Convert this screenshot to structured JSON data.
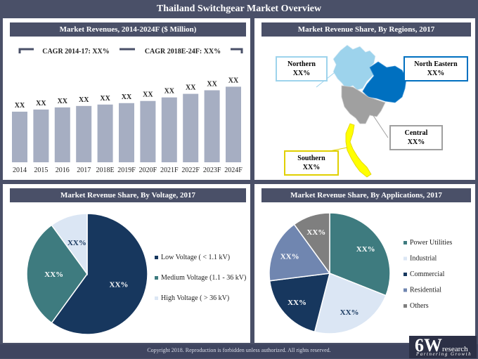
{
  "page_title": "Thailand Switchgear Market Overview",
  "copyright": "Copyright 2018. Reproduction is forbidden unless authorized. All rights reserved.",
  "logo": {
    "main": "6W",
    "sup": "research",
    "tagline": "Partnering Growth"
  },
  "colors": {
    "header": "#4a5068",
    "bar": "#a6aec2",
    "navy": "#17375e",
    "teal": "#3e7b7f",
    "lightblue": "#dbe6f4",
    "slate": "#7086b0",
    "gray": "#7f7f7f"
  },
  "panels": {
    "revenues": {
      "header": "Market Revenues, 2014-2024F ($ Million)",
      "cagr1": "CAGR 2014-17: XX%",
      "cagr2": "CAGR 2018E-24F: XX%"
    },
    "regions": {
      "header": "Market Revenue Share, By Regions, 2017",
      "items": [
        {
          "name": "Northern",
          "value": "XX%",
          "color": "#9dd3ec"
        },
        {
          "name": "North Eastern",
          "value": "XX%",
          "color": "#0070c0"
        },
        {
          "name": "Central",
          "value": "XX%",
          "color": "#a0a0a0"
        },
        {
          "name": "Southern",
          "value": "XX%",
          "color": "#ffff00"
        }
      ]
    },
    "voltage": {
      "header": "Market Revenue Share, By Voltage, 2017"
    },
    "applications": {
      "header": "Market Revenue Share, By Applications, 2017"
    }
  },
  "chart_data": [
    {
      "type": "bar",
      "title": "Market Revenues, 2014-2024F ($ Million)",
      "categories": [
        "2014",
        "2015",
        "2016",
        "2017",
        "2018E",
        "2019F",
        "2020F",
        "2021F",
        "2022F",
        "2023F",
        "2024F"
      ],
      "values": [
        71,
        74,
        77,
        79,
        81,
        83,
        86,
        91,
        96,
        101,
        106
      ],
      "labels": [
        "XX",
        "XX",
        "XX",
        "XX",
        "XX",
        "XX",
        "XX",
        "XX",
        "XX",
        "XX",
        "XX"
      ],
      "ylim": [
        0,
        135
      ],
      "xlabel": "",
      "ylabel": ""
    },
    {
      "type": "pie",
      "title": "Market Revenue Share, By Voltage, 2017",
      "series": [
        {
          "name": "Low Voltage ( < 1.1 kV)",
          "value": 60,
          "label": "XX%",
          "color": "#17375e"
        },
        {
          "name": "Medium Voltage (1.1 - 36 kV)",
          "value": 30,
          "label": "XX%",
          "color": "#3e7b7f"
        },
        {
          "name": "High Voltage ( > 36 kV)",
          "value": 10,
          "label": "XX%",
          "color": "#dbe6f4"
        }
      ]
    },
    {
      "type": "pie",
      "title": "Market Revenue Share, By Applications, 2017",
      "series": [
        {
          "name": "Power Utilities",
          "value": 31,
          "label": "XX%",
          "color": "#3e7b7f"
        },
        {
          "name": "Industrial",
          "value": 23,
          "label": "XX%",
          "color": "#dbe6f4"
        },
        {
          "name": "Commercial",
          "value": 19,
          "label": "XX%",
          "color": "#17375e"
        },
        {
          "name": "Residential",
          "value": 17,
          "label": "XX%",
          "color": "#7086b0"
        },
        {
          "name": "Others",
          "value": 10,
          "label": "XX%",
          "color": "#7f7f7f"
        }
      ]
    }
  ]
}
